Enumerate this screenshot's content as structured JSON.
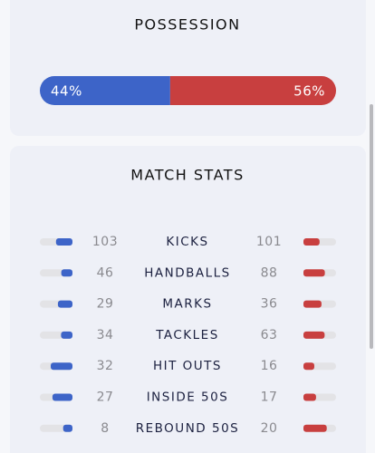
{
  "possession": {
    "title": "POSSESSION",
    "home": {
      "value": 44,
      "label": "44%"
    },
    "away": {
      "value": 56,
      "label": "56%"
    }
  },
  "match_stats": {
    "title": "MATCH STATS",
    "rows": [
      {
        "label": "KICKS",
        "home": 103,
        "away": 101
      },
      {
        "label": "HANDBALLS",
        "home": 46,
        "away": 88
      },
      {
        "label": "MARKS",
        "home": 29,
        "away": 36
      },
      {
        "label": "TACKLES",
        "home": 34,
        "away": 63
      },
      {
        "label": "HIT OUTS",
        "home": 32,
        "away": 16
      },
      {
        "label": "INSIDE 50S",
        "home": 27,
        "away": 17
      },
      {
        "label": "REBOUND 50S",
        "home": 8,
        "away": 20
      }
    ]
  }
}
